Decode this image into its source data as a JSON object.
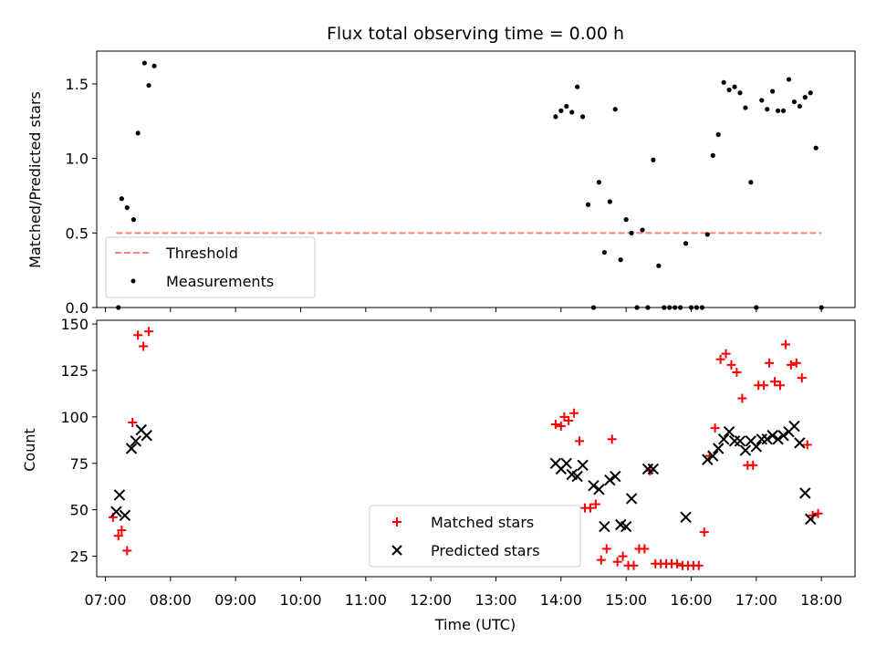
{
  "figure": {
    "title": "Flux total observing time = 0.00 h",
    "x_label": "Time (UTC)"
  },
  "chart_data": [
    {
      "type": "scatter",
      "ylabel": "Matched/Predicted stars",
      "xlim": [
        "06:52",
        "18:31"
      ],
      "ylim": [
        0,
        1.72
      ],
      "y_ticks": [
        0.0,
        0.5,
        1.0,
        1.5
      ],
      "y_tick_labels": [
        "0.0",
        "0.5",
        "1.0",
        "1.5"
      ],
      "grid": false,
      "legend_position": "lower-left",
      "threshold": {
        "name": "Threshold",
        "value": 0.5,
        "x_range": [
          "07:10",
          "18:00"
        ],
        "color": "#ff7f7f",
        "style": "dashed"
      },
      "series": [
        {
          "name": "Measurements",
          "color": "#000000",
          "marker": "dot",
          "points": [
            [
              "07:12",
              0.0
            ],
            [
              "07:15",
              0.73
            ],
            [
              "07:20",
              0.67
            ],
            [
              "07:26",
              0.59
            ],
            [
              "07:30",
              1.17
            ],
            [
              "07:36",
              1.64
            ],
            [
              "07:40",
              1.49
            ],
            [
              "07:45",
              1.62
            ],
            [
              "13:55",
              1.28
            ],
            [
              "14:00",
              1.32
            ],
            [
              "14:05",
              1.35
            ],
            [
              "14:10",
              1.31
            ],
            [
              "14:15",
              1.48
            ],
            [
              "14:20",
              1.28
            ],
            [
              "14:25",
              0.69
            ],
            [
              "14:30",
              0.0
            ],
            [
              "14:35",
              0.84
            ],
            [
              "14:40",
              0.37
            ],
            [
              "14:45",
              0.71
            ],
            [
              "14:50",
              1.33
            ],
            [
              "14:55",
              0.32
            ],
            [
              "15:00",
              0.59
            ],
            [
              "15:05",
              0.5
            ],
            [
              "15:10",
              0.0
            ],
            [
              "15:15",
              0.52
            ],
            [
              "15:20",
              0.0
            ],
            [
              "15:25",
              0.99
            ],
            [
              "15:30",
              0.28
            ],
            [
              "15:35",
              0.0
            ],
            [
              "15:40",
              0.0
            ],
            [
              "15:45",
              0.0
            ],
            [
              "15:50",
              0.0
            ],
            [
              "15:55",
              0.43
            ],
            [
              "16:00",
              0.0
            ],
            [
              "16:05",
              0.0
            ],
            [
              "16:10",
              0.0
            ],
            [
              "16:15",
              0.49
            ],
            [
              "16:20",
              1.02
            ],
            [
              "16:25",
              1.16
            ],
            [
              "16:30",
              1.51
            ],
            [
              "16:35",
              1.46
            ],
            [
              "16:40",
              1.48
            ],
            [
              "16:45",
              1.44
            ],
            [
              "16:50",
              1.34
            ],
            [
              "16:55",
              0.84
            ],
            [
              "17:00",
              0.0
            ],
            [
              "17:05",
              1.39
            ],
            [
              "17:10",
              1.33
            ],
            [
              "17:15",
              1.45
            ],
            [
              "17:20",
              1.32
            ],
            [
              "17:25",
              1.32
            ],
            [
              "17:30",
              1.53
            ],
            [
              "17:35",
              1.38
            ],
            [
              "17:40",
              1.35
            ],
            [
              "17:45",
              1.41
            ],
            [
              "17:50",
              1.44
            ],
            [
              "17:55",
              1.07
            ],
            [
              "18:00",
              0.0
            ]
          ]
        }
      ]
    },
    {
      "type": "scatter",
      "ylabel": "Count",
      "xlim": [
        "06:52",
        "18:31"
      ],
      "ylim": [
        14,
        152
      ],
      "y_ticks": [
        25,
        50,
        75,
        100,
        125,
        150
      ],
      "y_tick_labels": [
        "25",
        "50",
        "75",
        "100",
        "125",
        "150"
      ],
      "x_ticks": [
        "07:00",
        "08:00",
        "09:00",
        "10:00",
        "11:00",
        "12:00",
        "13:00",
        "14:00",
        "15:00",
        "16:00",
        "17:00",
        "18:00"
      ],
      "x_tick_labels": [
        "07:00",
        "08:00",
        "09:00",
        "10:00",
        "11:00",
        "12:00",
        "13:00",
        "14:00",
        "15:00",
        "16:00",
        "17:00",
        "18:00"
      ],
      "grid": false,
      "legend_position": "lower-center",
      "series": [
        {
          "name": "Matched stars",
          "color": "#ff0000",
          "marker": "plus",
          "points": [
            [
              "07:07",
              46
            ],
            [
              "07:12",
              36
            ],
            [
              "07:15",
              39
            ],
            [
              "07:20",
              28
            ],
            [
              "07:25",
              97
            ],
            [
              "07:30",
              144
            ],
            [
              "07:35",
              138
            ],
            [
              "07:40",
              146
            ],
            [
              "13:55",
              96
            ],
            [
              "14:00",
              95
            ],
            [
              "14:03",
              100
            ],
            [
              "14:07",
              98
            ],
            [
              "14:12",
              102
            ],
            [
              "14:17",
              87
            ],
            [
              "14:22",
              51
            ],
            [
              "14:27",
              51
            ],
            [
              "14:32",
              53
            ],
            [
              "14:37",
              23
            ],
            [
              "14:42",
              29
            ],
            [
              "14:47",
              88
            ],
            [
              "14:52",
              22
            ],
            [
              "14:57",
              25
            ],
            [
              "15:02",
              20
            ],
            [
              "15:07",
              20
            ],
            [
              "15:12",
              29
            ],
            [
              "15:17",
              29
            ],
            [
              "15:22",
              71
            ],
            [
              "15:27",
              21
            ],
            [
              "15:32",
              21
            ],
            [
              "15:37",
              21
            ],
            [
              "15:42",
              21
            ],
            [
              "15:47",
              21
            ],
            [
              "15:52",
              20
            ],
            [
              "15:57",
              20
            ],
            [
              "16:02",
              20
            ],
            [
              "16:07",
              20
            ],
            [
              "16:12",
              38
            ],
            [
              "16:17",
              79
            ],
            [
              "16:22",
              94
            ],
            [
              "16:27",
              131
            ],
            [
              "16:32",
              134
            ],
            [
              "16:37",
              128
            ],
            [
              "16:42",
              124
            ],
            [
              "16:47",
              110
            ],
            [
              "16:52",
              74
            ],
            [
              "16:57",
              74
            ],
            [
              "17:02",
              117
            ],
            [
              "17:07",
              117
            ],
            [
              "17:12",
              129
            ],
            [
              "17:17",
              119
            ],
            [
              "17:22",
              117
            ],
            [
              "17:27",
              139
            ],
            [
              "17:32",
              128
            ],
            [
              "17:37",
              129
            ],
            [
              "17:42",
              121
            ],
            [
              "17:47",
              85
            ],
            [
              "17:52",
              47
            ],
            [
              "17:57",
              48
            ]
          ]
        },
        {
          "name": "Predicted stars",
          "color": "#000000",
          "marker": "x",
          "points": [
            [
              "07:10",
              49
            ],
            [
              "07:13",
              58
            ],
            [
              "07:18",
              47
            ],
            [
              "07:24",
              83
            ],
            [
              "07:28",
              87
            ],
            [
              "07:33",
              93
            ],
            [
              "07:38",
              90
            ],
            [
              "13:55",
              75
            ],
            [
              "14:00",
              72
            ],
            [
              "14:05",
              75
            ],
            [
              "14:10",
              69
            ],
            [
              "14:15",
              68
            ],
            [
              "14:20",
              74
            ],
            [
              "14:30",
              63
            ],
            [
              "14:35",
              61
            ],
            [
              "14:40",
              41
            ],
            [
              "14:45",
              66
            ],
            [
              "14:50",
              68
            ],
            [
              "14:55",
              42
            ],
            [
              "15:00",
              41
            ],
            [
              "15:05",
              56
            ],
            [
              "15:20",
              72
            ],
            [
              "15:25",
              72
            ],
            [
              "15:55",
              46
            ],
            [
              "16:15",
              77
            ],
            [
              "16:20",
              79
            ],
            [
              "16:25",
              83
            ],
            [
              "16:30",
              88
            ],
            [
              "16:35",
              92
            ],
            [
              "16:40",
              87
            ],
            [
              "16:45",
              87
            ],
            [
              "16:50",
              82
            ],
            [
              "16:55",
              87
            ],
            [
              "17:00",
              84
            ],
            [
              "17:05",
              88
            ],
            [
              "17:10",
              88
            ],
            [
              "17:15",
              90
            ],
            [
              "17:20",
              88
            ],
            [
              "17:25",
              90
            ],
            [
              "17:30",
              92
            ],
            [
              "17:35",
              95
            ],
            [
              "17:40",
              86
            ],
            [
              "17:45",
              59
            ],
            [
              "17:50",
              45
            ]
          ]
        }
      ]
    }
  ]
}
